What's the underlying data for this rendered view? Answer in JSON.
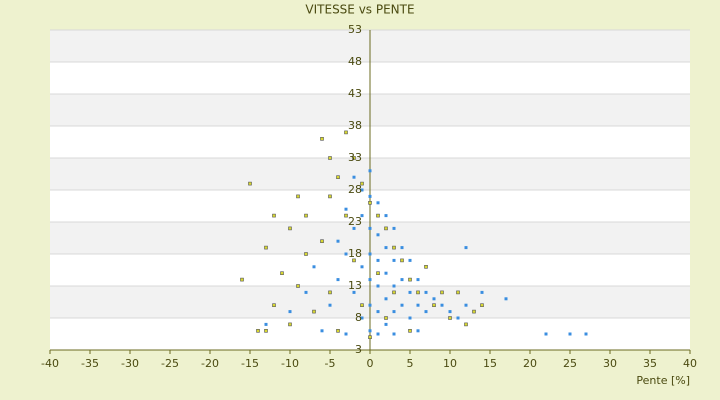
{
  "chart_data": {
    "type": "scatter",
    "title": "VITESSE vs PENTE",
    "x_label": "Pente [%]",
    "xlim": [
      -40,
      40
    ],
    "xticks": [
      -40,
      -35,
      -30,
      -25,
      -20,
      -15,
      -10,
      -5,
      0,
      5,
      10,
      15,
      20,
      25,
      30,
      35,
      40
    ],
    "ylim": [
      3,
      53
    ],
    "yticks": [
      3,
      8,
      13,
      18,
      23,
      28,
      33,
      38,
      43,
      48,
      53
    ],
    "grid": true,
    "series": [
      {
        "color": "#3a8ee0",
        "x": [
          -5,
          -4,
          -4,
          -3,
          -3,
          -2,
          -2,
          -2,
          -1,
          -1,
          -1,
          -1,
          0,
          0,
          0,
          0,
          0,
          0,
          0,
          1,
          1,
          1,
          1,
          1,
          1,
          2,
          2,
          2,
          2,
          2,
          3,
          3,
          3,
          3,
          4,
          4,
          4,
          5,
          5,
          5,
          6,
          6,
          7,
          7,
          8,
          9,
          10,
          11,
          12,
          12,
          13,
          14,
          17,
          22,
          25,
          27,
          -6,
          -8,
          -10,
          -13,
          -7,
          -3,
          3,
          6
        ],
        "values": [
          10,
          14,
          20,
          25,
          18,
          30,
          22,
          12,
          28,
          24,
          16,
          8,
          31,
          27,
          22,
          18,
          14,
          10,
          6,
          26,
          21,
          17,
          13,
          9,
          5.5,
          24,
          19,
          15,
          11,
          7,
          22,
          17,
          13,
          9,
          19,
          14,
          10,
          17,
          12,
          8,
          14,
          10,
          12,
          9,
          11,
          10,
          9,
          8,
          19,
          10,
          9,
          12,
          11,
          5.5,
          5.5,
          5.5,
          6,
          12,
          9,
          7,
          16,
          5.5,
          5.5,
          6
        ]
      },
      {
        "color": "#d8d830",
        "x": [
          -16,
          -15,
          -13,
          -13,
          -12,
          -11,
          -10,
          -10,
          -9,
          -8,
          -8,
          -7,
          -6,
          -6,
          -5,
          -5,
          -5,
          -4,
          -4,
          -3,
          -3,
          -2,
          -2,
          -1,
          -1,
          0,
          0,
          1,
          1,
          2,
          2,
          3,
          3,
          4,
          5,
          5,
          6,
          7,
          8,
          9,
          10,
          11,
          12,
          13,
          14,
          -14,
          -12,
          -9
        ],
        "values": [
          14,
          29,
          19,
          6,
          10,
          15,
          22,
          7,
          13,
          24,
          18,
          9,
          36,
          20,
          33,
          27,
          12,
          30,
          6,
          37,
          24,
          33,
          17,
          29,
          10,
          26,
          5,
          24,
          15,
          22,
          8,
          19,
          12,
          17,
          14,
          6,
          12,
          16,
          10,
          12,
          8,
          12,
          7,
          9,
          10,
          6,
          24,
          27
        ]
      }
    ]
  }
}
